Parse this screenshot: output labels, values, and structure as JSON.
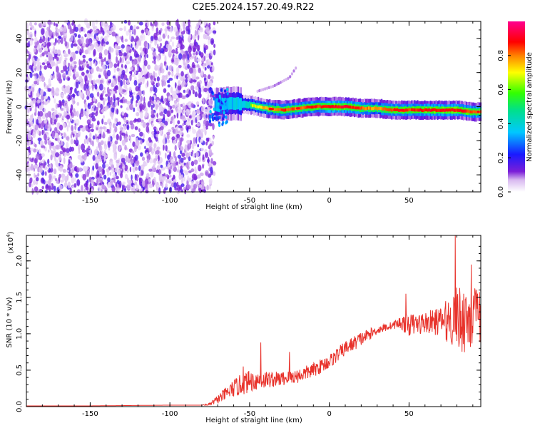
{
  "figure": {
    "title": "C2E5.2024.157.20.49.R22"
  },
  "chart_data": [
    {
      "type": "heatmap",
      "xlabel": "Height of straight line (km)",
      "ylabel": "Frequency (Hz)",
      "xlim": [
        -190,
        95
      ],
      "ylim": [
        -50,
        50
      ],
      "xticks": [
        -150,
        -100,
        -50,
        0,
        50
      ],
      "yticks": [
        -40,
        -20,
        0,
        20,
        40
      ],
      "colorbar": {
        "label": "Normalized spectral amplitude",
        "range": [
          0,
          1
        ],
        "ticks": [
          "0.0",
          "0.2",
          "0.4",
          "0.6",
          "0.8"
        ],
        "colormap": "rainbow (white → purple → blue → cyan → green → yellow → red → magenta)"
      },
      "ridge": {
        "x": [
          -72,
          -60,
          -50,
          -40,
          -30,
          -20,
          -10,
          0,
          10,
          20,
          30,
          40,
          50,
          60,
          70,
          80,
          90,
          95
        ],
        "freq": [
          1,
          2,
          1,
          -1,
          -2,
          -1,
          0,
          0,
          0,
          -1,
          -1,
          -2,
          -2,
          -2,
          -2,
          -2,
          -3,
          -3
        ],
        "amplitude": [
          0.35,
          0.45,
          0.55,
          0.7,
          0.8,
          0.75,
          0.8,
          0.85,
          0.85,
          0.75,
          0.7,
          0.8,
          0.8,
          0.85,
          0.85,
          0.85,
          0.8,
          0.75
        ]
      },
      "noise_region": {
        "x_range": [
          -190,
          -72
        ],
        "amplitude": "0.0-0.15"
      },
      "side_arm": {
        "x": [
          -45,
          -35,
          -25,
          -20
        ],
        "freq": [
          9,
          12,
          17,
          24
        ]
      }
    },
    {
      "type": "line",
      "xlabel": "Height of straight line (km)",
      "ylabel": "SNR (10 * v/v)",
      "scale_note": "(x10",
      "scale_exp": "4",
      "scale_close": ")",
      "xlim": [
        -190,
        95
      ],
      "ylim": [
        0,
        2.35
      ],
      "xticks": [
        -150,
        -100,
        -50,
        0,
        50
      ],
      "yticks": [
        "0.0",
        "0.5",
        "1.0",
        "1.5",
        "2.0"
      ],
      "line_color": "#e8322b",
      "x": [
        -190,
        -150,
        -100,
        -80,
        -75,
        -70,
        -60,
        -55,
        -50,
        -40,
        -30,
        -20,
        -10,
        0,
        10,
        20,
        30,
        40,
        45,
        50,
        60,
        70,
        80,
        85,
        90,
        95
      ],
      "y": [
        0.01,
        0.01,
        0.02,
        0.02,
        0.03,
        0.1,
        0.25,
        0.3,
        0.35,
        0.37,
        0.38,
        0.42,
        0.5,
        0.62,
        0.8,
        0.93,
        1.05,
        1.12,
        1.15,
        1.12,
        1.15,
        1.17,
        1.2,
        1.22,
        1.23,
        1.22
      ],
      "noise_amplitude": [
        0,
        0,
        0,
        0,
        0.02,
        0.06,
        0.12,
        0.15,
        0.15,
        0.12,
        0.1,
        0.1,
        0.1,
        0.1,
        0.1,
        0.1,
        0.06,
        0.05,
        0.1,
        0.15,
        0.15,
        0.2,
        0.45,
        0.5,
        0.45,
        0.35
      ],
      "peaks": [
        {
          "x": -54,
          "y": 0.55
        },
        {
          "x": -43,
          "y": 0.88
        },
        {
          "x": -25,
          "y": 0.75
        },
        {
          "x": 48,
          "y": 1.55
        },
        {
          "x": 79,
          "y": 2.35
        },
        {
          "x": 89,
          "y": 1.95
        }
      ]
    }
  ]
}
